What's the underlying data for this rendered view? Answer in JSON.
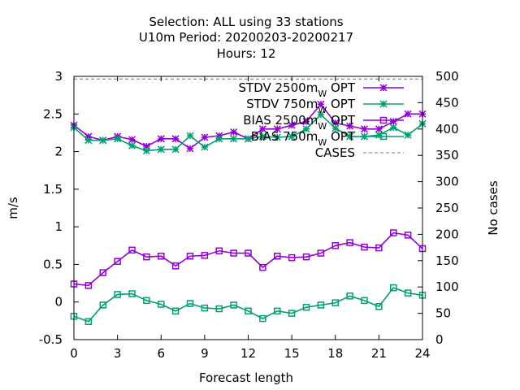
{
  "chart_data": {
    "type": "line",
    "title_lines": [
      "Selection: ALL using    33 stations",
      "U10m   Period: 20200203-20200217",
      "Hours:  12"
    ],
    "xlabel": "Forecast length",
    "ylabel": "m/s",
    "y2label": "No cases",
    "xlim": [
      0,
      24
    ],
    "ylim": [
      -0.5,
      3
    ],
    "y2lim": [
      0,
      500
    ],
    "xticks": [
      0,
      3,
      6,
      9,
      12,
      15,
      18,
      21,
      24
    ],
    "yticks": [
      "-0.5",
      "0",
      "0.5",
      "1",
      "1.5",
      "2",
      "2.5",
      "3"
    ],
    "y2ticks": [
      "0",
      "50",
      "100",
      "150",
      "200",
      "250",
      "300",
      "350",
      "400",
      "450",
      "500"
    ],
    "x": [
      0,
      1,
      2,
      3,
      4,
      5,
      6,
      7,
      8,
      9,
      10,
      11,
      12,
      13,
      14,
      15,
      16,
      17,
      18,
      19,
      20,
      21,
      22,
      23,
      24
    ],
    "legend_placement": "top-right",
    "series": [
      {
        "name": "STDV 2500m_w OPT",
        "legend_main": "STDV 2500m",
        "legend_sub": "W",
        "legend_tail": " OPT",
        "color": "#9400d3",
        "marker": "star",
        "axis": "y1",
        "values": [
          2.35,
          2.2,
          2.15,
          2.2,
          2.16,
          2.07,
          2.17,
          2.17,
          2.04,
          2.19,
          2.21,
          2.26,
          2.17,
          2.3,
          2.3,
          2.35,
          2.4,
          2.63,
          2.38,
          2.34,
          2.3,
          2.3,
          2.4,
          2.5,
          2.5
        ]
      },
      {
        "name": "STDV 750m_w OPT",
        "legend_main": "STDV 750m",
        "legend_sub": "W",
        "legend_tail": " OPT",
        "color": "#009e73",
        "marker": "star",
        "axis": "y1",
        "values": [
          2.32,
          2.15,
          2.15,
          2.17,
          2.08,
          2.01,
          2.03,
          2.03,
          2.21,
          2.06,
          2.17,
          2.17,
          2.17,
          2.2,
          2.19,
          2.2,
          2.3,
          2.49,
          2.31,
          2.2,
          2.2,
          2.22,
          2.32,
          2.22,
          2.37
        ]
      },
      {
        "name": "BIAS 2500m_w OPT",
        "legend_main": "BIAS 2500m",
        "legend_sub": "W",
        "legend_tail": " OPT",
        "color": "#9400d3",
        "marker": "square",
        "axis": "y1",
        "values": [
          0.24,
          0.22,
          0.39,
          0.54,
          0.69,
          0.6,
          0.61,
          0.48,
          0.61,
          0.62,
          0.68,
          0.65,
          0.65,
          0.46,
          0.61,
          0.59,
          0.6,
          0.65,
          0.75,
          0.79,
          0.73,
          0.72,
          0.92,
          0.89,
          0.71
        ]
      },
      {
        "name": "BIAS 750m_w OPT",
        "legend_main": "BIAS 750m",
        "legend_sub": "W",
        "legend_tail": " OPT",
        "color": "#009e73",
        "marker": "square",
        "axis": "y1",
        "values": [
          -0.19,
          -0.26,
          -0.04,
          0.1,
          0.11,
          0.02,
          -0.03,
          -0.12,
          -0.02,
          -0.08,
          -0.09,
          -0.04,
          -0.12,
          -0.22,
          -0.12,
          -0.15,
          -0.07,
          -0.04,
          -0.01,
          0.08,
          0.02,
          -0.06,
          0.19,
          0.12,
          0.09
        ]
      },
      {
        "name": "CASES",
        "legend_main": "CASES",
        "legend_sub": "",
        "legend_tail": "",
        "color": "#777777",
        "marker": "none",
        "axis": "y2",
        "dashed": true,
        "values": [
          495,
          495,
          495,
          495,
          495,
          495,
          495,
          495,
          495,
          495,
          495,
          495,
          495,
          495,
          495,
          495,
          495,
          495,
          495,
          495,
          495,
          495,
          495,
          495,
          495
        ]
      }
    ]
  }
}
